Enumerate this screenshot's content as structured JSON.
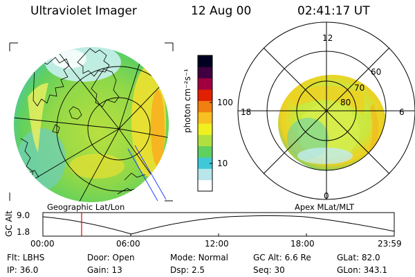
{
  "header": {
    "instrument": "Ultraviolet Imager",
    "date": "12 Aug 00",
    "time": "02:41:17 UT"
  },
  "colorbar": {
    "label": "photon cm⁻²s⁻¹",
    "ticks": [
      {
        "label": "100",
        "value": 100
      },
      {
        "label": "10",
        "value": 10
      }
    ],
    "colors": [
      "#ffffff",
      "#b8e6ea",
      "#40c8d8",
      "#60d060",
      "#b0e040",
      "#f0f020",
      "#f8c020",
      "#f08010",
      "#e02000",
      "#a00040",
      "#400040",
      "#000020"
    ]
  },
  "left_panel": {
    "caption": "Geographic Lat/Lon"
  },
  "right_panel": {
    "caption": "Apex MLat/MLT",
    "mlt_labels": {
      "top": "12",
      "right": "6",
      "bottom": "0",
      "left": "18"
    },
    "lat_labels": [
      "60",
      "70",
      "80"
    ]
  },
  "altitude_plot": {
    "ylabel": "GC Alt",
    "yticks": [
      "9.0",
      "1.8"
    ],
    "xticks": [
      "00:00",
      "06:00",
      "12:00",
      "18:00",
      "23:59"
    ],
    "marker_color": "#e00000"
  },
  "info": [
    {
      "key": "Flt:",
      "val": "LBHS"
    },
    {
      "key": "Door:",
      "val": "Open"
    },
    {
      "key": "Mode:",
      "val": "Normal"
    },
    {
      "key": "GC Alt:",
      "val": "6.6 Re"
    },
    {
      "key": "GLat:",
      "val": "82.0"
    },
    {
      "key": "IP:",
      "val": "36.0"
    },
    {
      "key": "Gain:",
      "val": "13"
    },
    {
      "key": "Dsp:",
      "val": "2.5"
    },
    {
      "key": "Seq:",
      "val": "30"
    },
    {
      "key": "GLon:",
      "val": "343.1"
    }
  ]
}
